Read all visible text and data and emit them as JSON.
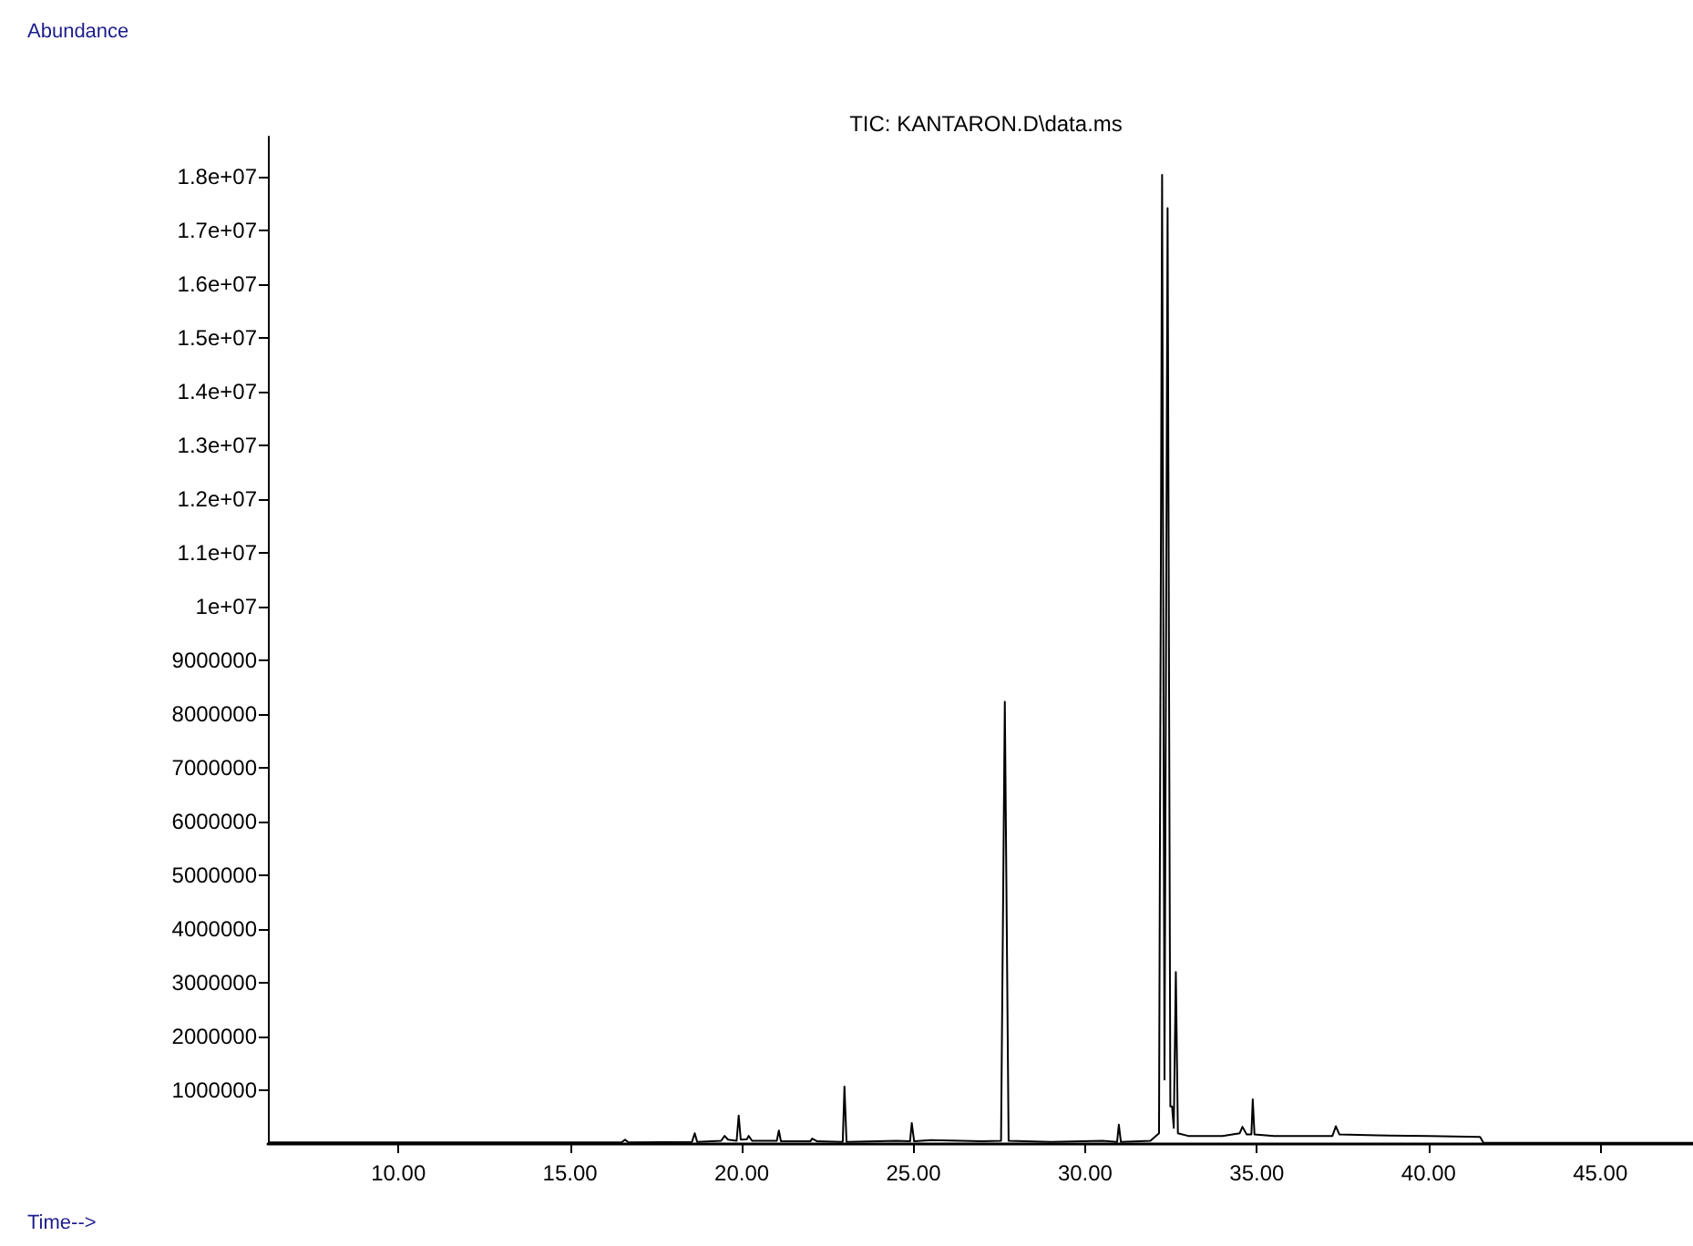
{
  "chart_data": {
    "type": "line",
    "title": "TIC: KANTARON.D\\data.ms",
    "xlabel": "Time-->",
    "annotations": [
      "Abundance"
    ],
    "xlim": [
      6.2,
      47.7
    ],
    "ylim": [
      0,
      18750000
    ],
    "xticks": [
      {
        "value": 10,
        "label": "10.00"
      },
      {
        "value": 15,
        "label": "15.00"
      },
      {
        "value": 20,
        "label": "20.00"
      },
      {
        "value": 25,
        "label": "25.00"
      },
      {
        "value": 30,
        "label": "30.00"
      },
      {
        "value": 35,
        "label": "35.00"
      },
      {
        "value": 40,
        "label": "40.00"
      },
      {
        "value": 45,
        "label": "45.00"
      }
    ],
    "yticks": [
      1000000,
      2000000,
      3000000,
      4000000,
      5000000,
      6000000,
      7000000,
      8000000,
      9000000,
      {
        "value": 10000000,
        "label": "1e+07"
      },
      {
        "value": 11000000,
        "label": "1.1e+07"
      },
      {
        "value": 12000000,
        "label": "1.2e+07"
      },
      {
        "value": 13000000,
        "label": "1.3e+07"
      },
      {
        "value": 14000000,
        "label": "1.4e+07"
      },
      {
        "value": 15000000,
        "label": "1.5e+07"
      },
      {
        "value": 16000000,
        "label": "1.6e+07"
      },
      {
        "value": 17000000,
        "label": "1.7e+07"
      },
      {
        "value": 18000000,
        "label": "1.8e+07"
      }
    ],
    "grid": false,
    "marker": "none",
    "line_style": "solid",
    "series": [
      {
        "color": "#000000",
        "x": [
          6.2,
          12,
          16.5,
          16.6,
          16.7,
          18.55,
          18.63,
          18.7,
          19.4,
          19.5,
          19.6,
          19.85,
          19.91,
          19.97,
          20.15,
          20.2,
          20.3,
          21.02,
          21.08,
          21.14,
          22.0,
          22.05,
          22.2,
          22.94,
          22.99,
          23.05,
          24.5,
          24.9,
          24.95,
          25.02,
          25.5,
          27.0,
          27.55,
          27.66,
          27.77,
          29.0,
          30.5,
          30.93,
          30.98,
          31.04,
          31.9,
          32.15,
          32.24,
          32.31,
          32.4,
          32.48,
          32.53,
          32.58,
          32.64,
          32.7,
          33.0,
          34.0,
          34.5,
          34.58,
          34.7,
          34.84,
          34.88,
          34.93,
          35.5,
          37.2,
          37.3,
          37.4,
          38.5,
          40.0,
          41.5,
          41.6,
          47.7
        ],
        "values": [
          30000,
          30000,
          30000,
          80000,
          30000,
          40000,
          200000,
          40000,
          60000,
          150000,
          80000,
          60000,
          530000,
          80000,
          90000,
          150000,
          60000,
          60000,
          250000,
          50000,
          50000,
          100000,
          50000,
          40000,
          1070000,
          40000,
          60000,
          50000,
          390000,
          50000,
          70000,
          50000,
          60000,
          8230000,
          60000,
          40000,
          60000,
          40000,
          360000,
          40000,
          60000,
          200000,
          18040000,
          1200000,
          17420000,
          700000,
          700000,
          300000,
          3200000,
          200000,
          150000,
          150000,
          200000,
          320000,
          180000,
          180000,
          830000,
          180000,
          150000,
          150000,
          330000,
          180000,
          160000,
          150000,
          130000,
          20000,
          20000
        ]
      }
    ]
  }
}
